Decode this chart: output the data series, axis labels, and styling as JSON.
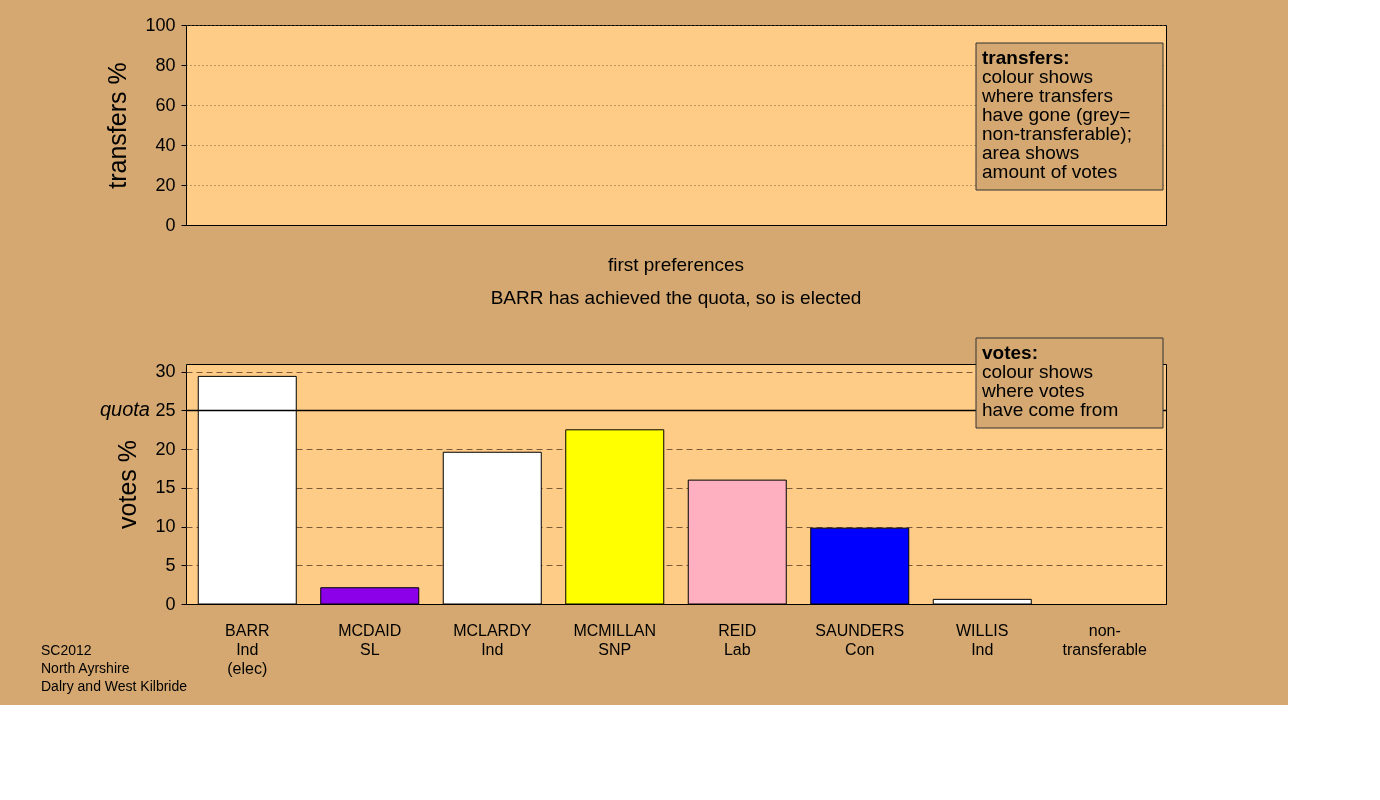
{
  "chart_data": [
    {
      "type": "bar",
      "ylabel": "transfers %",
      "categories": [
        null,
        null,
        null,
        null,
        null,
        null,
        null,
        null
      ],
      "values": [
        null,
        null,
        null,
        null,
        null,
        null,
        null,
        null
      ],
      "ylim": [
        0,
        100
      ],
      "yticks": [
        0,
        20,
        40,
        60,
        80,
        100
      ],
      "grid": "y",
      "tick_labels": "y",
      "line_style": "dotted",
      "annotations": [
        "transfers:\ncolour shows\nwhere transfers\nhave gone (grey=\nnon-transferable);\narea shows\namount of votes"
      ]
    },
    {
      "type": "bar",
      "title": "first preferences",
      "subtitle": "BARR has achieved the quota, so is elected",
      "ylabel": "votes %",
      "categories": [
        "BARR\nInd\n(elec)",
        "MCDAID\nSL",
        "MCLARDY\nInd",
        "MCMILLAN\nSNP",
        "REID\nLab",
        "SAUNDERS\nCon",
        "WILLIS\nInd",
        "non-\ntransferable"
      ],
      "values": [
        29.4,
        2.1,
        19.6,
        22.5,
        16.0,
        9.8,
        0.6,
        null
      ],
      "colors": [
        "#ffffff",
        "#8b00e8",
        "#ffffff",
        "#ffff00",
        "#ffb0c0",
        "#0000ff",
        "#ffffff",
        "#ffffff"
      ],
      "ylim": [
        0,
        31
      ],
      "yticks": [
        0,
        5,
        10,
        15,
        20,
        25,
        30
      ],
      "grid": "y",
      "line_style": "dashed",
      "ref_lines": [
        {
          "axis": "y",
          "value": 25,
          "label": "quota"
        }
      ],
      "annotations": [
        "votes:\ncolour shows\nwhere votes\nhave come from",
        "SC2012\nNorth Ayrshire\nDalry and West Kilbride"
      ]
    }
  ]
}
